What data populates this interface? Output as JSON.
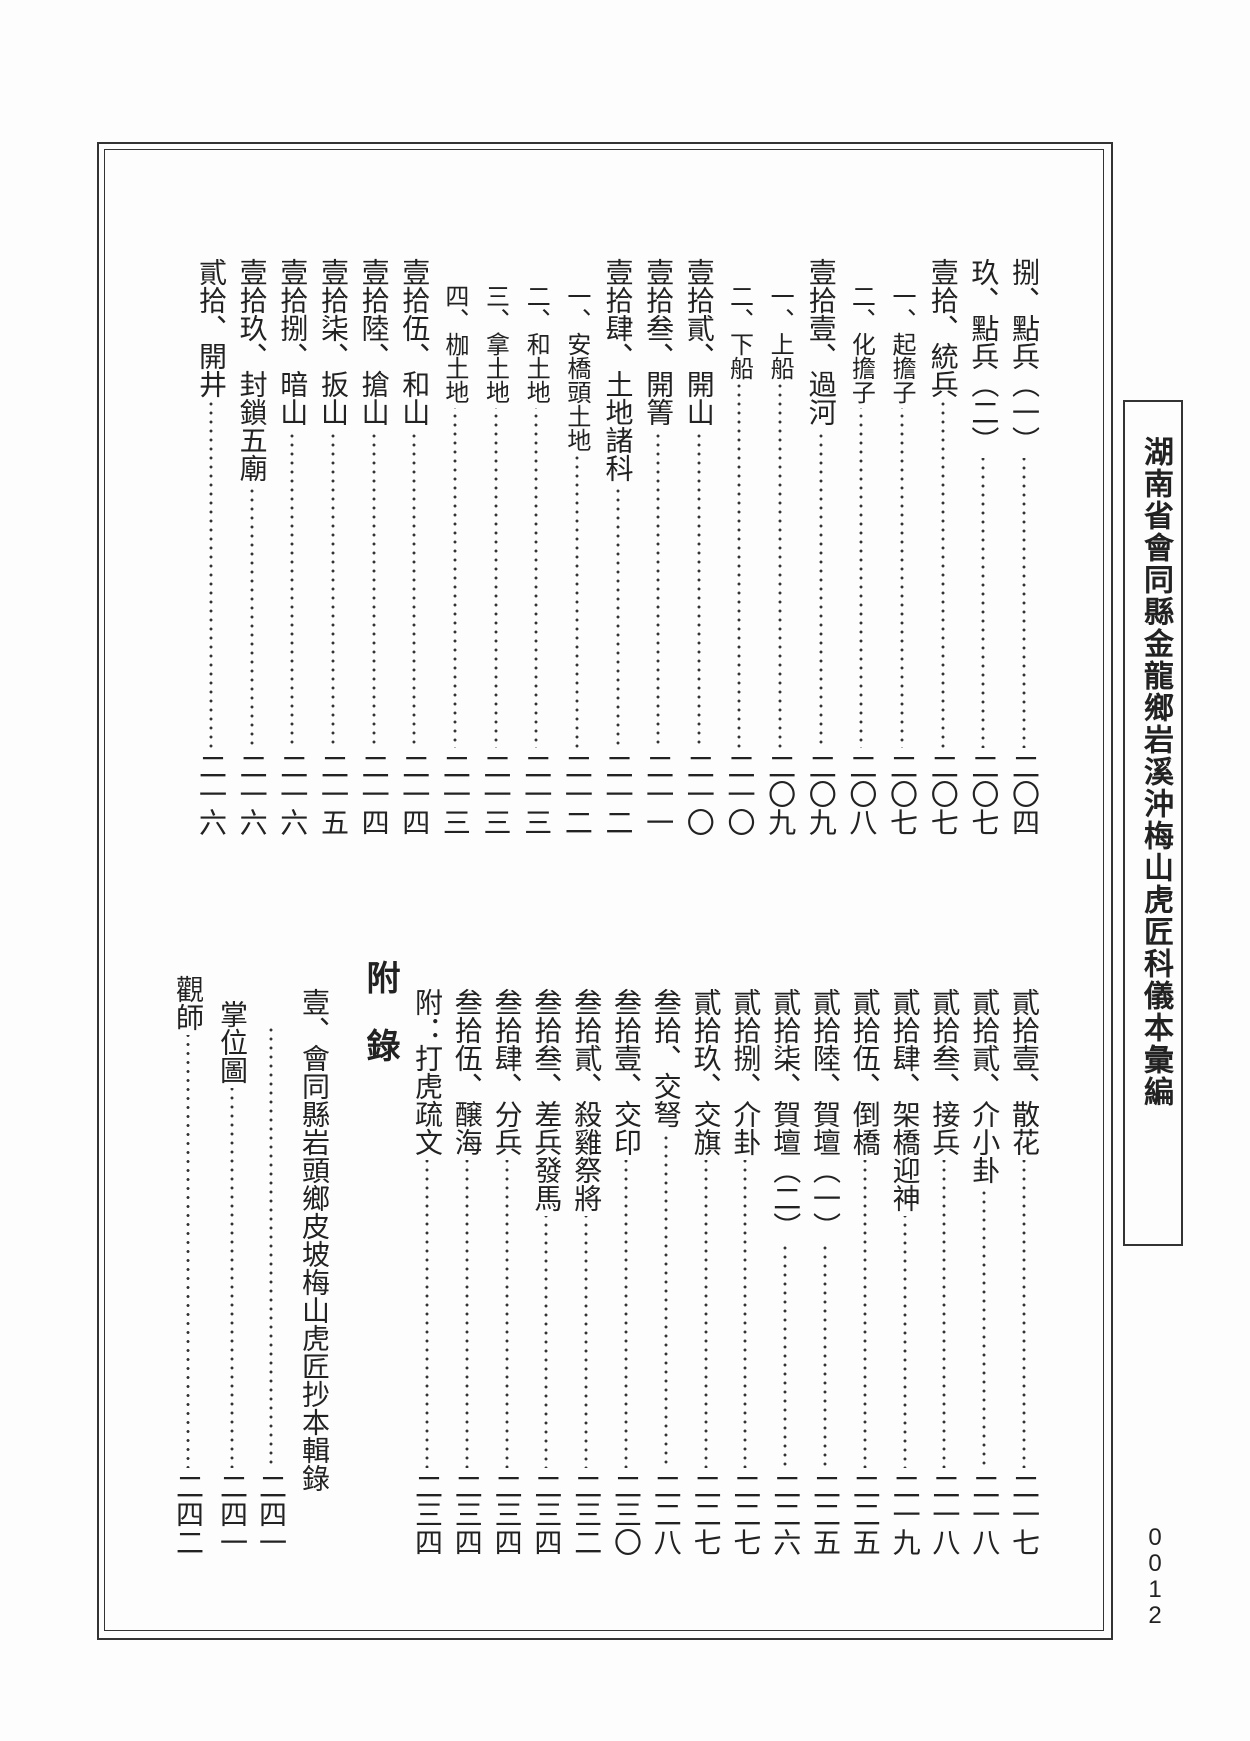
{
  "header": {
    "title": "湖南省會同縣金龍鄉岩溪沖梅山虎匠科儀本彙編"
  },
  "page_number": "0012",
  "toc_top": {
    "entries": [
      {
        "label": "捌、點兵（一）",
        "page": "二〇四"
      },
      {
        "label": "玖、點兵（二）",
        "page": "二〇七"
      },
      {
        "label": "壹拾、統兵",
        "page": "二〇七"
      },
      {
        "label": "一、起擔子",
        "page": "二〇七"
      },
      {
        "label": "二、化擔子",
        "page": "二〇八"
      },
      {
        "label": "壹拾壹、過河",
        "page": "二〇九"
      },
      {
        "label": "一、上船",
        "page": "二〇九"
      },
      {
        "label": "二、下船",
        "page": "二一〇"
      },
      {
        "label": "壹拾貳、開山",
        "page": "二一〇"
      },
      {
        "label": "壹拾叁、開箐",
        "page": "二一一"
      },
      {
        "label": "壹拾肆、土地諸科",
        "page": "二一二"
      },
      {
        "label": "一、安橋頭土地",
        "page": "二一二"
      },
      {
        "label": "二、和土地",
        "page": "二一三"
      },
      {
        "label": "三、拿土地",
        "page": "二一三"
      },
      {
        "label": "四、枷土地",
        "page": "二一三"
      },
      {
        "label": "壹拾伍、和山",
        "page": "二一四"
      },
      {
        "label": "壹拾陸、搶山",
        "page": "二一四"
      },
      {
        "label": "壹拾柒、扳山",
        "page": "二一五"
      },
      {
        "label": "壹拾捌、暗山",
        "page": "二一六"
      },
      {
        "label": "壹拾玖、封鎖五廟",
        "page": "二一六"
      },
      {
        "label": "貳拾、開井",
        "page": "二一六"
      }
    ]
  },
  "toc_bottom": {
    "entries": [
      {
        "label": "貳拾壹、散花",
        "page": "二一七"
      },
      {
        "label": "貳拾貳、介小卦",
        "page": "二一八"
      },
      {
        "label": "貳拾叁、接兵",
        "page": "二一八"
      },
      {
        "label": "貳拾肆、架橋迎神",
        "page": "二一九"
      },
      {
        "label": "貳拾伍、倒橋",
        "page": "二二五"
      },
      {
        "label": "貳拾陸、賀壇（一）",
        "page": "二二五"
      },
      {
        "label": "貳拾柒、賀壇（二）",
        "page": "二二六"
      },
      {
        "label": "貳拾捌、介卦",
        "page": "二二七"
      },
      {
        "label": "貳拾玖、交旗",
        "page": "二二七"
      },
      {
        "label": "叁拾、交弩",
        "page": "二二八"
      },
      {
        "label": "叁拾壹、交印",
        "page": "二三〇"
      },
      {
        "label": "叁拾貳、殺雞祭將",
        "page": "二三二"
      },
      {
        "label": "叁拾叁、差兵發馬",
        "page": "二三四"
      },
      {
        "label": "叁拾肆、分兵",
        "page": "二三四"
      },
      {
        "label": "叁拾伍、醸海",
        "page": "二三四"
      },
      {
        "label": "附：打虎疏文",
        "page": "二三四"
      }
    ]
  },
  "appendix": {
    "heading": "附　錄",
    "entries": [
      {
        "label": "壹、會同縣岩頭鄉皮坡梅山虎匠抄本輯錄",
        "page": "二四一"
      },
      {
        "label": "掌位圖",
        "page": "二四一"
      },
      {
        "label": "觀師",
        "page": "二四二"
      }
    ]
  }
}
